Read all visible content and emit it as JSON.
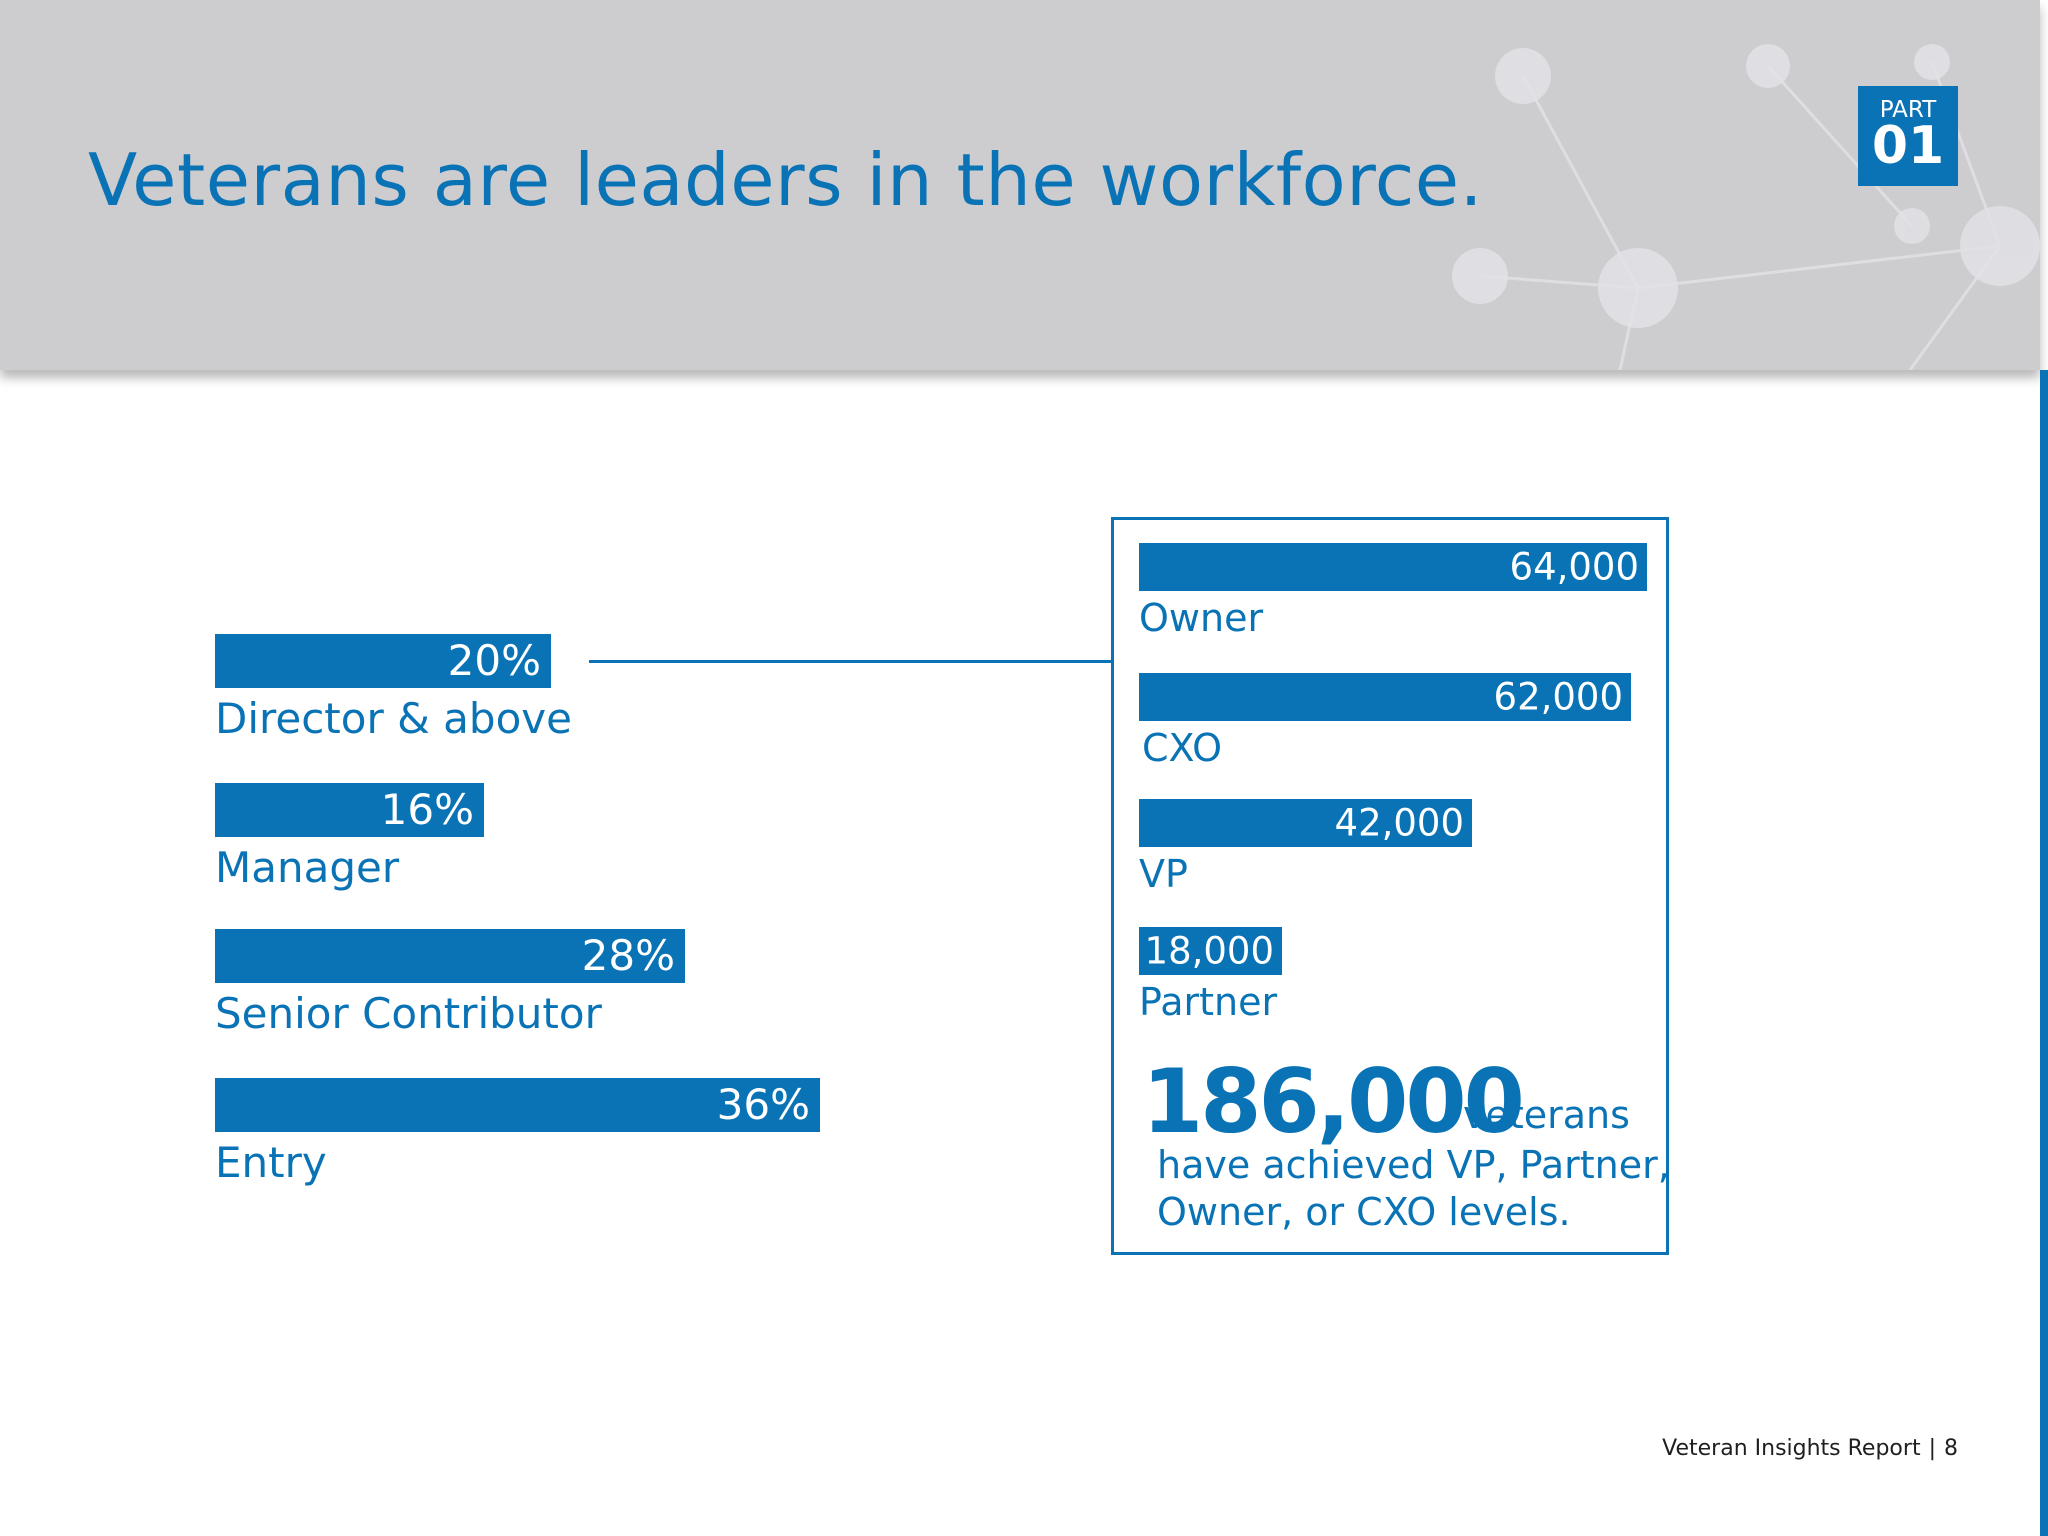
{
  "header": {
    "title": "Veterans are leaders in the workforce.",
    "part_label": "PART",
    "part_number": "01"
  },
  "colors": {
    "accent": "#0a73b5",
    "header_bg": "#cdcdd0"
  },
  "chart_data": [
    {
      "type": "bar",
      "orientation": "horizontal",
      "categories": [
        "Director &  above",
        "Manager",
        "Senior Contributor",
        "Entry"
      ],
      "values": [
        20,
        16,
        28,
        36
      ],
      "value_labels": [
        "20%",
        "16%",
        "28%",
        "36%"
      ],
      "unit": "%",
      "xlim": [
        0,
        40
      ]
    },
    {
      "type": "bar",
      "orientation": "horizontal",
      "categories": [
        "Owner",
        "CXO",
        "VP",
        "Partner"
      ],
      "values": [
        64000,
        62000,
        42000,
        18000
      ],
      "value_labels": [
        "64,000",
        "62,000",
        "42,000",
        "18,000"
      ],
      "xlim": [
        0,
        64000
      ]
    }
  ],
  "summary": {
    "number": "186,000",
    "suffix": "veterans",
    "line1": "have achieved VP, Partner,",
    "line2": "Owner, or CXO levels."
  },
  "footer": {
    "report": "Veteran Insights Report",
    "separator": "|",
    "page": "8"
  }
}
